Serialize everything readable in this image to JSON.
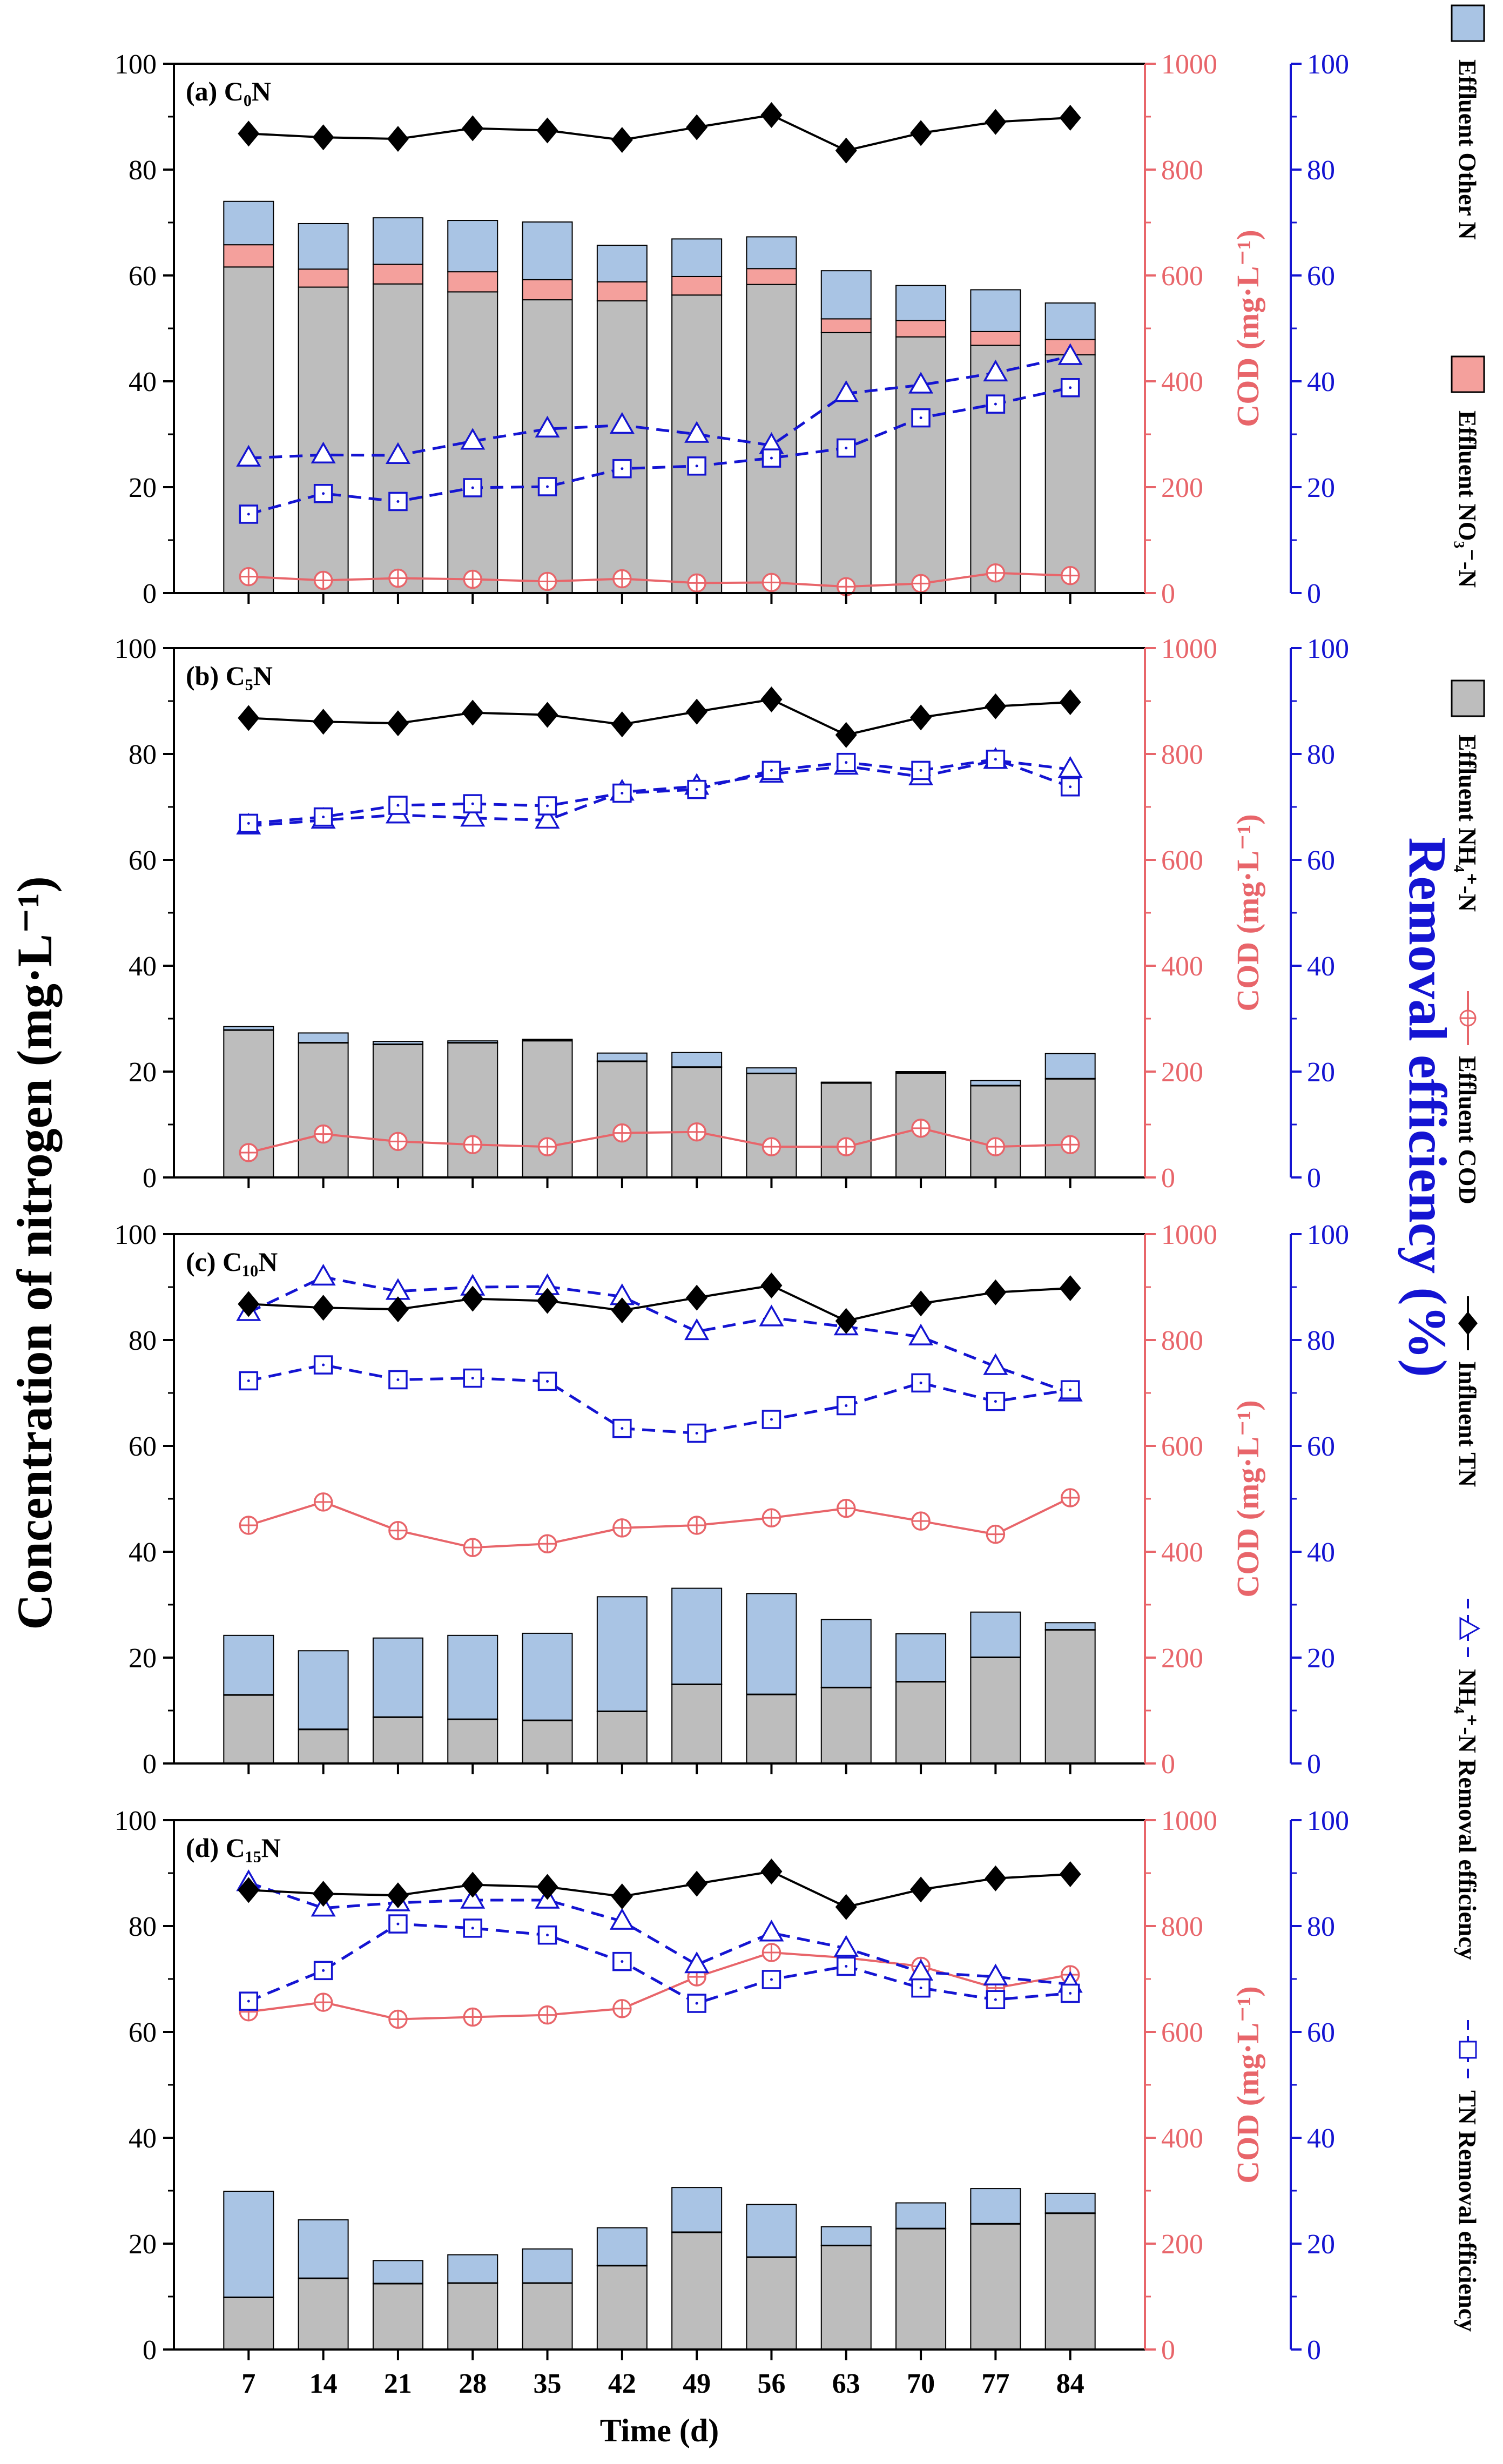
{
  "chart_data": {
    "type": "bar",
    "x": [
      7,
      14,
      21,
      28,
      35,
      42,
      49,
      56,
      63,
      70,
      77,
      84
    ],
    "xlabel": "Time (d)",
    "ylabel_left": "Concentration of nitrogen (mg·L⁻¹)",
    "ylabel_right_cod": "COD (mg·L⁻¹)",
    "ylabel_right_eff": "Removal efficiency (%)",
    "ylim_left": [
      0,
      100
    ],
    "ylim_cod": [
      0,
      1000
    ],
    "ylim_eff": [
      0,
      100
    ],
    "yticks_left": [
      "0",
      "20",
      "40",
      "60",
      "80",
      "100"
    ],
    "yticks_cod": [
      "0",
      "200",
      "400",
      "600",
      "800",
      "1000"
    ],
    "yticks_eff": [
      "0",
      "20",
      "40",
      "60",
      "80",
      "100"
    ],
    "colors": {
      "nh4": "#bdbdbd",
      "no3": "#f4a09c",
      "other": "#a9c4e4",
      "cod": "#e8656a",
      "tn": "#000000",
      "eff": "#1414d2",
      "axis_cod": "#e8656a",
      "axis_eff": "#1414d2"
    },
    "legend": [
      {
        "key": "other",
        "label": "Effluent Other N"
      },
      {
        "key": "no3",
        "label": "Effluent NO₃⁻-N"
      },
      {
        "key": "nh4",
        "label": "Effluent NH₄⁺-N"
      },
      {
        "key": "cod",
        "label": "Effluent COD"
      },
      {
        "key": "tn",
        "label": "Influent TN"
      },
      {
        "key": "nh4eff",
        "label": "NH₄⁺-N Removal efficiency"
      },
      {
        "key": "tneff",
        "label": "TN Removal efficiency"
      }
    ],
    "panels": [
      {
        "title": "(a) C₀N",
        "influent_tn": [
          86.8,
          86.1,
          85.8,
          87.8,
          87.4,
          85.6,
          88.0,
          90.3,
          83.6,
          86.9,
          89.0,
          89.8
        ],
        "nh4": [
          61.6,
          57.8,
          58.4,
          56.9,
          55.4,
          55.2,
          56.3,
          58.3,
          49.2,
          48.4,
          46.8,
          45.0
        ],
        "no3": [
          4.2,
          3.4,
          3.7,
          3.8,
          3.8,
          3.6,
          3.5,
          3.0,
          2.6,
          3.1,
          2.6,
          2.9
        ],
        "other": [
          8.2,
          8.6,
          8.8,
          9.7,
          10.9,
          6.9,
          7.1,
          6.0,
          9.1,
          6.6,
          7.9,
          6.9
        ],
        "cod": [
          31,
          24,
          28,
          26,
          22,
          27,
          19,
          20,
          12,
          18,
          38,
          33
        ],
        "nh4_eff": [
          25.5,
          26.1,
          26.0,
          28.7,
          31.0,
          31.7,
          30.0,
          27.9,
          37.7,
          39.3,
          41.6,
          44.7
        ],
        "tn_eff": [
          14.9,
          18.8,
          17.3,
          19.9,
          20.1,
          23.5,
          24.0,
          25.5,
          27.4,
          33.1,
          35.7,
          38.8
        ]
      },
      {
        "title": "(b) C₅N",
        "influent_tn": [
          86.8,
          86.1,
          85.8,
          87.8,
          87.4,
          85.6,
          88.0,
          90.3,
          83.6,
          86.9,
          89.0,
          89.8
        ],
        "nh4": [
          27.8,
          25.4,
          25.1,
          25.4,
          25.8,
          21.9,
          20.8,
          19.6,
          17.8,
          19.7,
          17.3,
          18.6
        ],
        "no3": [
          0.1,
          0.1,
          0.1,
          0.1,
          0.1,
          0.1,
          0.1,
          0.1,
          0.1,
          0.1,
          0.1,
          0.1
        ],
        "other": [
          0.6,
          1.8,
          0.5,
          0.3,
          0.2,
          1.5,
          2.7,
          1.0,
          0.1,
          0.2,
          0.9,
          4.7
        ],
        "cod": [
          47,
          82,
          68,
          62,
          58,
          84,
          86,
          58,
          58,
          93,
          58,
          62
        ],
        "nh4_eff": [
          66.4,
          67.5,
          68.5,
          67.9,
          67.5,
          72.8,
          73.9,
          76.2,
          77.7,
          75.7,
          78.8,
          77.1
        ],
        "tn_eff": [
          66.9,
          68.1,
          70.3,
          70.6,
          70.2,
          72.6,
          73.3,
          76.9,
          78.4,
          76.9,
          79.0,
          73.8
        ]
      },
      {
        "title": "(c) C₁₀N",
        "influent_tn": [
          86.8,
          86.1,
          85.8,
          87.8,
          87.4,
          85.6,
          88.0,
          90.3,
          83.6,
          86.9,
          89.0,
          89.8
        ],
        "nh4": [
          12.9,
          6.4,
          8.7,
          8.3,
          8.1,
          9.8,
          14.9,
          13.0,
          14.3,
          15.4,
          20.0,
          25.2
        ],
        "no3": [
          0.1,
          0.1,
          0.1,
          0.1,
          0.1,
          0.1,
          0.1,
          0.1,
          0.1,
          0.1,
          0.1,
          0.1
        ],
        "other": [
          11.2,
          14.8,
          14.9,
          15.8,
          16.4,
          21.6,
          18.1,
          19.0,
          12.8,
          9.0,
          8.5,
          1.3
        ],
        "cod": [
          450,
          494,
          440,
          408,
          415,
          445,
          450,
          464,
          482,
          458,
          433,
          502
        ],
        "nh4_eff": [
          85.2,
          91.9,
          89.2,
          90.0,
          90.1,
          88.2,
          81.6,
          84.2,
          82.5,
          80.6,
          75.0,
          70.0
        ],
        "tn_eff": [
          72.3,
          75.3,
          72.5,
          72.8,
          72.2,
          63.3,
          62.4,
          65.0,
          67.6,
          71.9,
          68.4,
          70.6
        ]
      },
      {
        "title": "(d) C₁₅N",
        "influent_tn": [
          86.8,
          86.1,
          85.8,
          87.8,
          87.4,
          85.6,
          88.0,
          90.3,
          83.6,
          86.9,
          89.0,
          89.8
        ],
        "nh4": [
          9.8,
          13.4,
          12.4,
          12.5,
          12.5,
          15.8,
          22.1,
          17.4,
          19.6,
          22.8,
          23.7,
          25.7
        ],
        "no3": [
          0.1,
          0.1,
          0.1,
          0.1,
          0.1,
          0.1,
          0.1,
          0.1,
          0.1,
          0.1,
          0.1,
          0.1
        ],
        "other": [
          20.0,
          11.0,
          4.3,
          5.3,
          6.4,
          7.1,
          8.4,
          9.9,
          3.5,
          4.8,
          6.6,
          3.7
        ],
        "cod": [
          638,
          656,
          624,
          628,
          632,
          644,
          704,
          750,
          740,
          724,
          683,
          708
        ],
        "nh4_eff": [
          88.2,
          83.4,
          84.4,
          84.9,
          84.9,
          80.9,
          72.7,
          78.7,
          75.8,
          71.3,
          70.4,
          69.0
        ],
        "tn_eff": [
          65.8,
          71.6,
          80.4,
          79.6,
          78.3,
          73.3,
          65.4,
          69.9,
          72.4,
          68.3,
          66.1,
          67.3
        ]
      }
    ]
  }
}
